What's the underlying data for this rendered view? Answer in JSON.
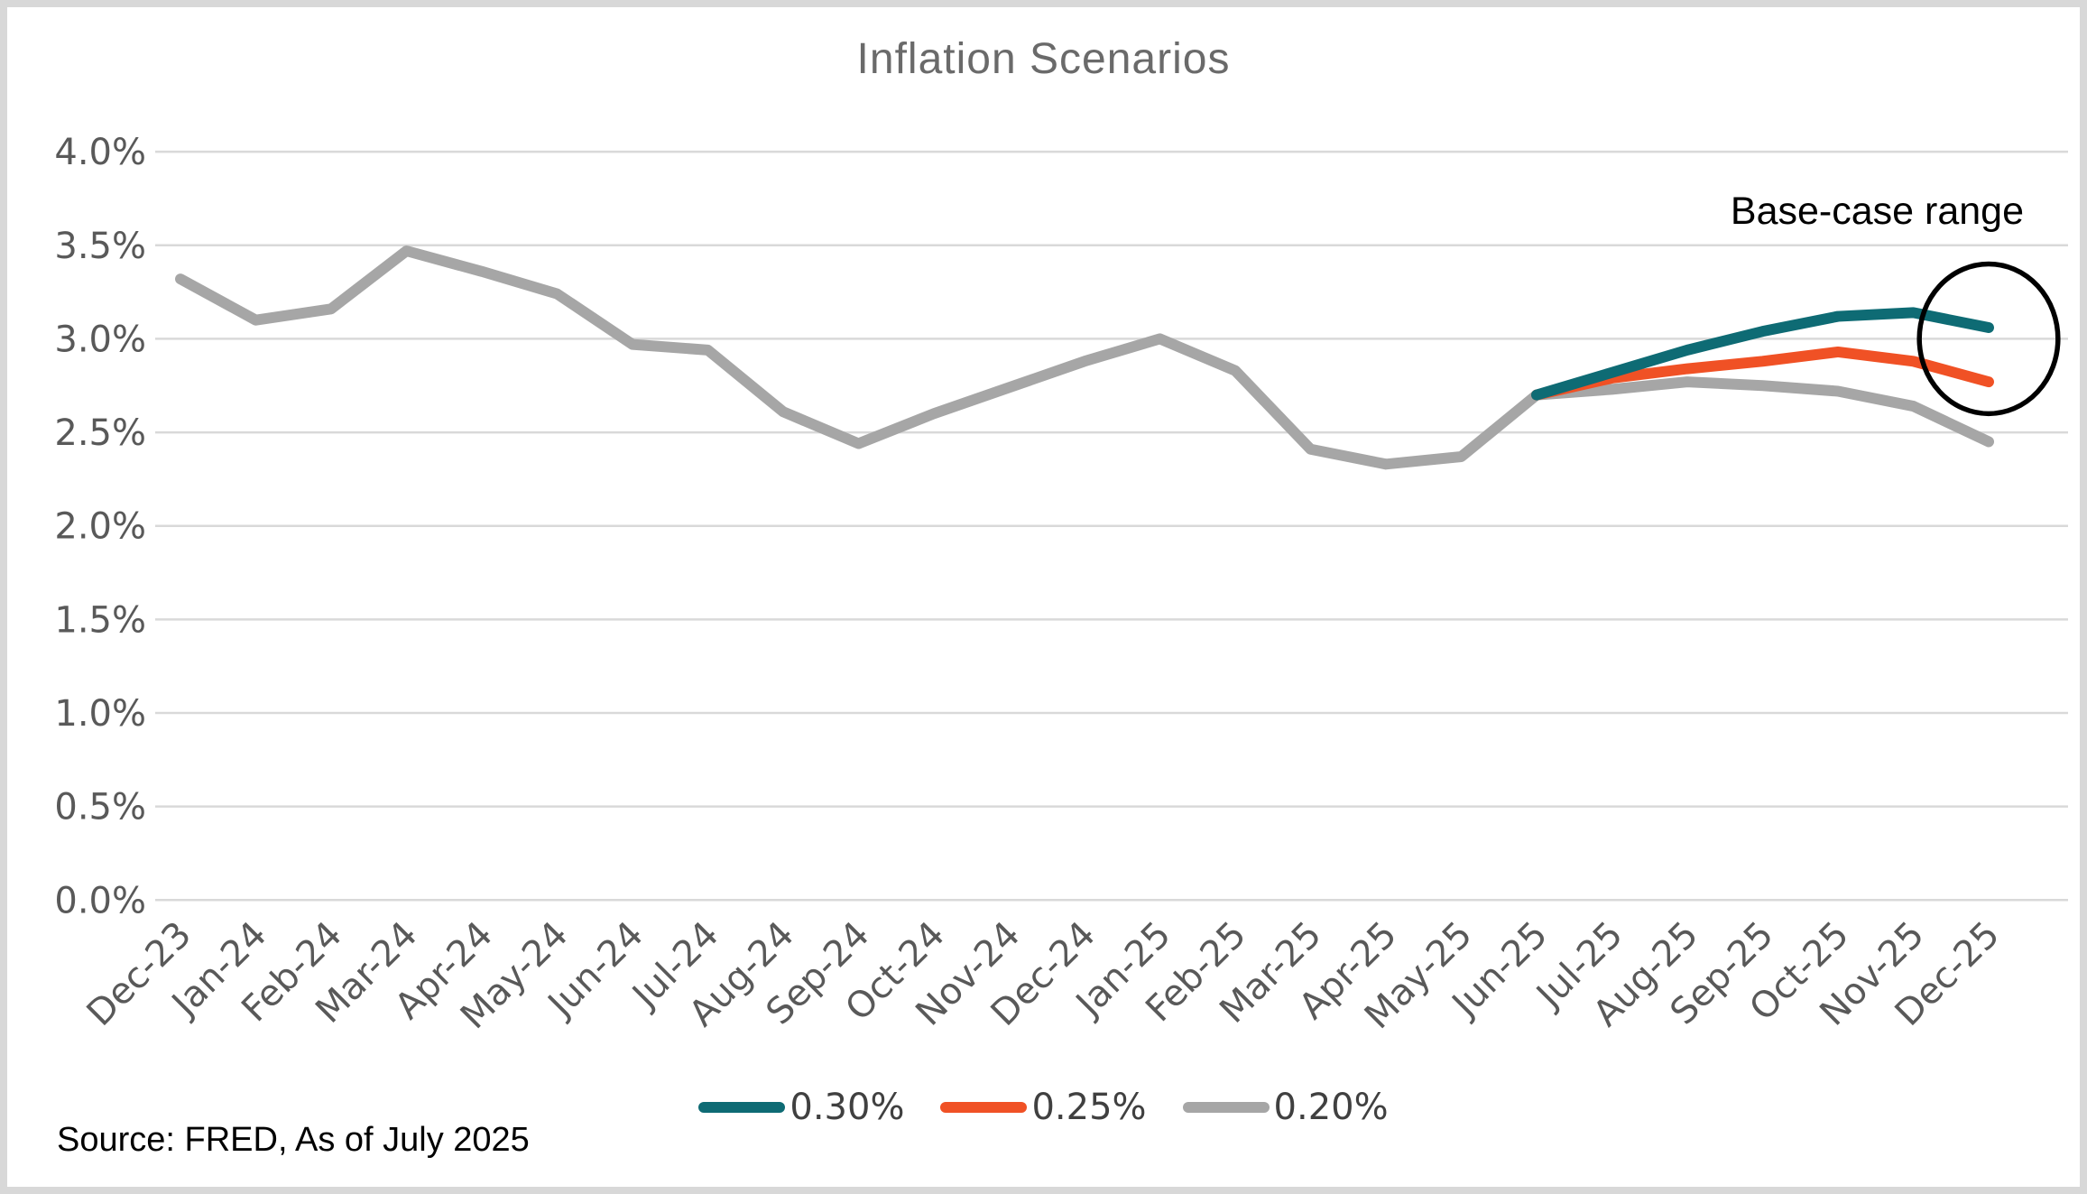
{
  "title": "Inflation Scenarios",
  "annotation": {
    "label": "Base-case range"
  },
  "source_note": "Source: FRED, As of July 2025",
  "colors": {
    "frame_border": "#D8D8D8",
    "background": "#FFFFFF",
    "gridline": "#D9D9D9",
    "axis_text": "#595959",
    "title_text": "#6A6A6A",
    "legend_text": "#404040",
    "annotation_text": "#000000",
    "annotation_circle": "#000000"
  },
  "legend": {
    "items": [
      {
        "label": "0.30%",
        "series": "0.30%"
      },
      {
        "label": "0.25%",
        "series": "0.25%"
      },
      {
        "label": "0.20%",
        "series": "0.20%"
      }
    ]
  },
  "chart_data": {
    "type": "line",
    "title": "Inflation Scenarios",
    "xlabel": "",
    "ylabel": "",
    "ylim": [
      0,
      4.0
    ],
    "y_tick_step": 0.5,
    "y_tick_format": "one_decimal_percent",
    "grid": "horizontal",
    "legend_position": "bottom-center",
    "categories": [
      "Dec-23",
      "Jan-24",
      "Feb-24",
      "Mar-24",
      "Apr-24",
      "May-24",
      "Jun-24",
      "Jul-24",
      "Aug-24",
      "Sep-24",
      "Oct-24",
      "Nov-24",
      "Dec-24",
      "Jan-25",
      "Feb-25",
      "Mar-25",
      "Apr-25",
      "May-25",
      "Jun-25",
      "Jul-25",
      "Aug-25",
      "Sep-25",
      "Oct-25",
      "Nov-25",
      "Dec-25"
    ],
    "series": [
      {
        "name": "0.20%",
        "color": "#A6A6A6",
        "start_index": 0,
        "values": [
          3.32,
          3.1,
          3.16,
          3.47,
          3.36,
          3.24,
          2.97,
          2.94,
          2.61,
          2.44,
          2.6,
          2.74,
          2.88,
          3.0,
          2.83,
          2.41,
          2.33,
          2.37,
          2.7,
          2.73,
          2.77,
          2.75,
          2.72,
          2.64,
          2.45
        ]
      },
      {
        "name": "0.25%",
        "color": "#F05125",
        "start_index": 18,
        "values": [
          2.7,
          2.79,
          2.84,
          2.88,
          2.93,
          2.88,
          2.77
        ]
      },
      {
        "name": "0.30%",
        "color": "#0E6B74",
        "start_index": 18,
        "values": [
          2.7,
          2.82,
          2.94,
          3.04,
          3.12,
          3.14,
          3.06
        ]
      }
    ],
    "annotation_circle": {
      "center_category": "Dec-25",
      "center_month_index": 24,
      "center_value": 3.0,
      "rx_months": 0.92,
      "ry_percent": 0.4
    }
  }
}
